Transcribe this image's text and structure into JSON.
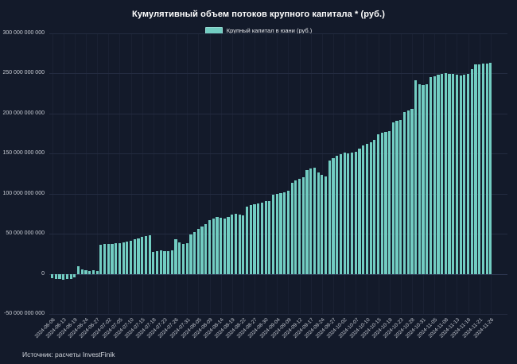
{
  "title": "Кумулятивный объем потоков крупного капитала * (руб.)",
  "legend": {
    "label": "Крупный капитал в юани (руб.)"
  },
  "source": "Источник: расчеты InvestFinik",
  "colors": {
    "background": "#131a2a",
    "bar": "#72cdc2",
    "grid": "#232b40",
    "vertical_grid": "#1a2133",
    "zero_line": "#2e3752",
    "title_text": "#ffffff",
    "tick_text": "#c6cad2"
  },
  "chart_data": {
    "type": "bar",
    "title": "Кумулятивный объем потоков крупного капитала * (руб.)",
    "series_name": "Крупный капитал в юани (руб.)",
    "xlabel": "",
    "ylabel": "",
    "legend_position": "top-center",
    "grid": "on",
    "value_unit": "billion RUB (values_e9 are in units of 1 000 000 000 руб.)",
    "ylim_e9": [
      -50,
      300
    ],
    "y_ticks": [
      {
        "value_e9": 300,
        "label": "300 000 000 000"
      },
      {
        "value_e9": 250,
        "label": "250 000 000 000"
      },
      {
        "value_e9": 200,
        "label": "200 000 000 000"
      },
      {
        "value_e9": 150,
        "label": "150 000 000 000"
      },
      {
        "value_e9": 100,
        "label": "100 000 000 000"
      },
      {
        "value_e9": 50,
        "label": "50 000 000 000"
      },
      {
        "value_e9": 0,
        "label": "0"
      },
      {
        "value_e9": -50,
        "label": "-50 000 000 000"
      }
    ],
    "x_tick_every_n_bars": 3,
    "x_tick_labels": [
      "2024-06-06",
      "2024-06-13",
      "2024-06-19",
      "2024-06-24",
      "2024-06-27",
      "2024-07-02",
      "2024-07-05",
      "2024-07-10",
      "2024-07-15",
      "2024-07-18",
      "2024-07-23",
      "2024-07-26",
      "2024-07-31",
      "2024-08-05",
      "2024-08-09",
      "2024-08-14",
      "2024-08-19",
      "2024-08-22",
      "2024-08-27",
      "2024-08-30",
      "2024-09-04",
      "2024-09-09",
      "2024-09-12",
      "2024-09-17",
      "2024-09-24",
      "2024-09-27",
      "2024-10-02",
      "2024-10-07",
      "2024-10-10",
      "2024-10-15",
      "2024-10-18",
      "2024-10-23",
      "2024-10-28",
      "2024-10-31",
      "2024-11-05",
      "2024-11-08",
      "2024-11-13",
      "2024-11-18",
      "2024-11-21",
      "2024-11-26"
    ],
    "values_e9": [
      -5,
      -6,
      -6,
      -7,
      -6,
      -6,
      -4,
      9,
      6,
      5,
      4,
      5,
      4,
      36,
      37,
      37,
      37,
      38,
      38,
      39,
      40,
      41,
      43,
      44,
      46,
      47,
      48,
      27,
      28,
      29,
      28,
      28,
      29,
      43,
      39,
      37,
      38,
      49,
      52,
      56,
      59,
      62,
      67,
      69,
      71,
      70,
      69,
      71,
      74,
      75,
      74,
      73,
      84,
      86,
      87,
      88,
      89,
      91,
      91,
      99,
      100,
      101,
      102,
      104,
      114,
      117,
      119,
      121,
      129,
      131,
      132,
      126,
      124,
      122,
      141,
      144,
      147,
      149,
      151,
      150,
      151,
      152,
      156,
      160,
      162,
      164,
      167,
      174,
      176,
      177,
      178,
      189,
      191,
      192,
      202,
      204,
      206,
      242,
      237,
      236,
      237,
      245,
      246,
      248,
      249,
      250,
      249,
      249,
      248,
      247,
      248,
      249,
      255,
      261,
      261,
      262,
      262,
      263
    ]
  }
}
